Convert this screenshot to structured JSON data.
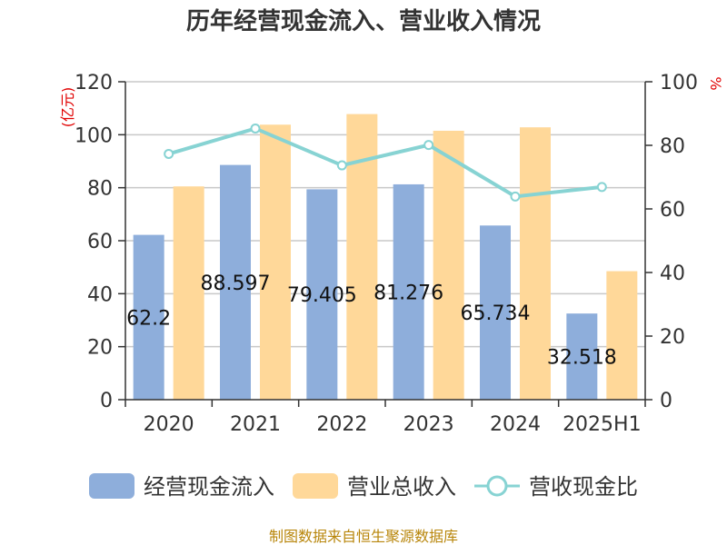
{
  "chart_data": {
    "type": "bar",
    "title": "历年经营现金流入、营业收入情况",
    "categories": [
      "2020",
      "2021",
      "2022",
      "2023",
      "2024",
      "2025H1"
    ],
    "left_unit": "(亿元)",
    "right_unit": "%",
    "y_left": {
      "ylim": [
        0,
        120
      ],
      "ticks": [
        0,
        20,
        40,
        60,
        80,
        100,
        120
      ]
    },
    "y_right": {
      "ylim": [
        0,
        100
      ],
      "ticks": [
        0,
        20,
        40,
        60,
        80,
        100
      ]
    },
    "grid": true,
    "legend_position": "bottom",
    "series": [
      {
        "name": "经营现金流入",
        "kind": "bar",
        "axis": "left",
        "color": "#8eaedb",
        "values": [
          62.2,
          88.597,
          79.405,
          81.276,
          65.734,
          32.518
        ],
        "labels": [
          "62.2",
          "88.597",
          "79.405",
          "81.276",
          "65.734",
          "32.518"
        ]
      },
      {
        "name": "营业总收入",
        "kind": "bar",
        "axis": "left",
        "color": "#ffd899",
        "values": [
          80.5,
          103.8,
          107.8,
          101.5,
          102.8,
          48.5
        ]
      },
      {
        "name": "营收现金比",
        "kind": "line",
        "axis": "right",
        "color": "#87d3d3",
        "values": [
          77.3,
          85.3,
          73.7,
          80.1,
          63.9,
          66.9
        ]
      }
    ]
  },
  "source": "制图数据来自恒生聚源数据库"
}
